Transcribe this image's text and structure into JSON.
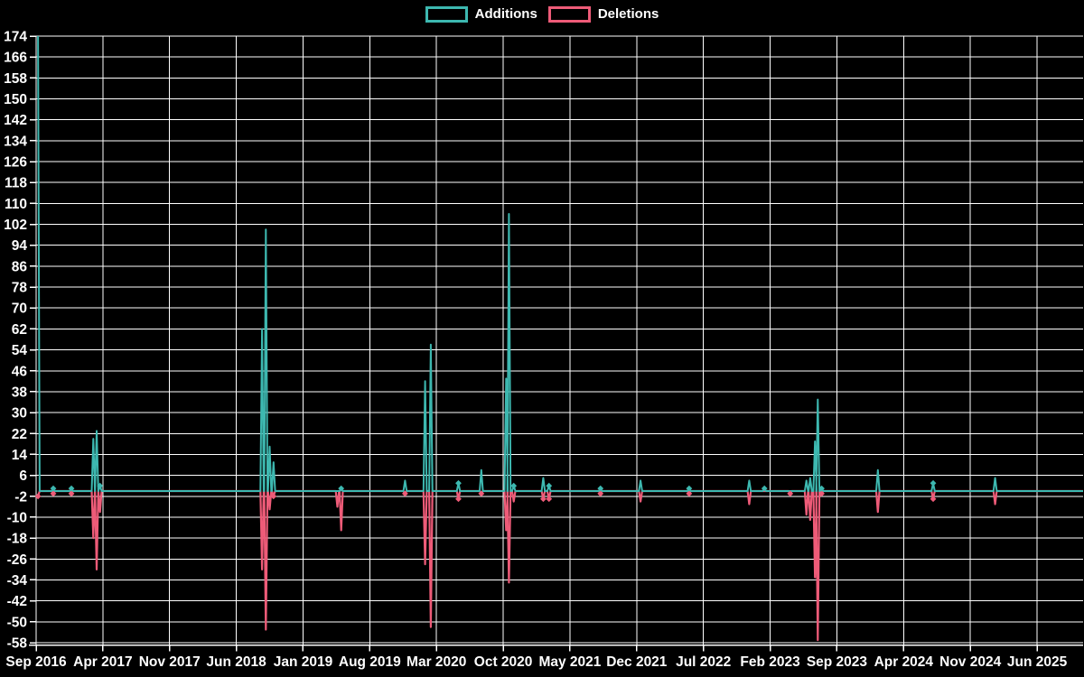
{
  "chart_data": {
    "type": "line",
    "title": "",
    "legend": [
      "Additions",
      "Deletions"
    ],
    "legend_position": "top-center",
    "grid": true,
    "background": "#000000",
    "colors": {
      "additions": "#3db8b0",
      "deletions": "#ee5b78",
      "grid": "#ffffff",
      "axis": "#ffffff",
      "text": "#ffffff",
      "background": "#000000"
    },
    "x_ticks": [
      "Sep 2016",
      "Apr 2017",
      "Nov 2017",
      "Jun 2018",
      "Jan 2019",
      "Aug 2019",
      "Mar 2020",
      "Oct 2020",
      "May 2021",
      "Dec 2021",
      "Jul 2022",
      "Feb 2023",
      "Sep 2023",
      "Apr 2024",
      "Nov 2024",
      "Jun 2025"
    ],
    "y_ticks": [
      174,
      166,
      158,
      150,
      142,
      134,
      126,
      118,
      110,
      102,
      94,
      86,
      78,
      70,
      62,
      54,
      46,
      38,
      30,
      22,
      14,
      6,
      -2,
      -10,
      -18,
      -26,
      -34,
      -42,
      -50,
      -58
    ],
    "ylim": [
      -58,
      174
    ],
    "y_tick_step": 8,
    "series_keys": [
      "additions",
      "deletions"
    ],
    "points": [
      {
        "date": "2016-09",
        "m": 0.2,
        "additions": 174,
        "deletions": -2
      },
      {
        "date": "2016-11",
        "m": 1.8,
        "additions": 1,
        "deletions": -1
      },
      {
        "date": "2017-01",
        "m": 3.7,
        "additions": 1,
        "deletions": -1
      },
      {
        "date": "2017-03",
        "m": 6.0,
        "additions": 20,
        "deletions": -18
      },
      {
        "date": "2017-03",
        "m": 6.35,
        "additions": 23,
        "deletions": -30
      },
      {
        "date": "2017-04",
        "m": 6.7,
        "additions": 2,
        "deletions": -8
      },
      {
        "date": "2018-08",
        "m": 23.7,
        "additions": 62,
        "deletions": -30
      },
      {
        "date": "2018-09",
        "m": 24.1,
        "additions": 100,
        "deletions": -53
      },
      {
        "date": "2018-09",
        "m": 24.5,
        "additions": 17,
        "deletions": -7
      },
      {
        "date": "2018-10",
        "m": 24.9,
        "additions": 11,
        "deletions": -2
      },
      {
        "date": "2019-05",
        "m": 31.6,
        "additions": 0,
        "deletions": -6
      },
      {
        "date": "2019-05",
        "m": 32.0,
        "additions": 1,
        "deletions": -15
      },
      {
        "date": "2019-12",
        "m": 38.7,
        "additions": 4,
        "deletions": -1
      },
      {
        "date": "2020-02",
        "m": 40.8,
        "additions": 42,
        "deletions": -28
      },
      {
        "date": "2020-03",
        "m": 41.4,
        "additions": 56,
        "deletions": -52
      },
      {
        "date": "2020-05",
        "m": 44.3,
        "additions": 3,
        "deletions": -3
      },
      {
        "date": "2020-08",
        "m": 46.7,
        "additions": 8,
        "deletions": -1
      },
      {
        "date": "2020-10",
        "m": 49.3,
        "additions": 43,
        "deletions": -15
      },
      {
        "date": "2020-10",
        "m": 49.6,
        "additions": 106,
        "deletions": -35
      },
      {
        "date": "2020-11",
        "m": 50.1,
        "additions": 2,
        "deletions": -4
      },
      {
        "date": "2021-02",
        "m": 53.2,
        "additions": 5,
        "deletions": -3
      },
      {
        "date": "2021-03",
        "m": 53.8,
        "additions": 2,
        "deletions": -3
      },
      {
        "date": "2021-08",
        "m": 59.2,
        "additions": 1,
        "deletions": -1
      },
      {
        "date": "2021-12",
        "m": 63.4,
        "additions": 4,
        "deletions": -4
      },
      {
        "date": "2022-05",
        "m": 68.5,
        "additions": 1,
        "deletions": -1
      },
      {
        "date": "2022-12",
        "m": 74.8,
        "additions": 4,
        "deletions": -5
      },
      {
        "date": "2023-02",
        "m": 76.4,
        "additions": 1,
        "deletions": 0
      },
      {
        "date": "2023-04",
        "m": 79.1,
        "additions": 0,
        "deletions": -1
      },
      {
        "date": "2023-06",
        "m": 80.8,
        "additions": 4,
        "deletions": -9
      },
      {
        "date": "2023-06",
        "m": 81.2,
        "additions": 5,
        "deletions": -11
      },
      {
        "date": "2023-07",
        "m": 81.7,
        "additions": 19,
        "deletions": -33
      },
      {
        "date": "2023-07",
        "m": 82.0,
        "additions": 35,
        "deletions": -57
      },
      {
        "date": "2023-08",
        "m": 82.4,
        "additions": 1,
        "deletions": -1
      },
      {
        "date": "2024-01",
        "m": 88.3,
        "additions": 8,
        "deletions": -8
      },
      {
        "date": "2024-07",
        "m": 94.1,
        "additions": 3,
        "deletions": -3
      },
      {
        "date": "2025-01",
        "m": 100.6,
        "additions": 5,
        "deletions": -5
      }
    ]
  }
}
